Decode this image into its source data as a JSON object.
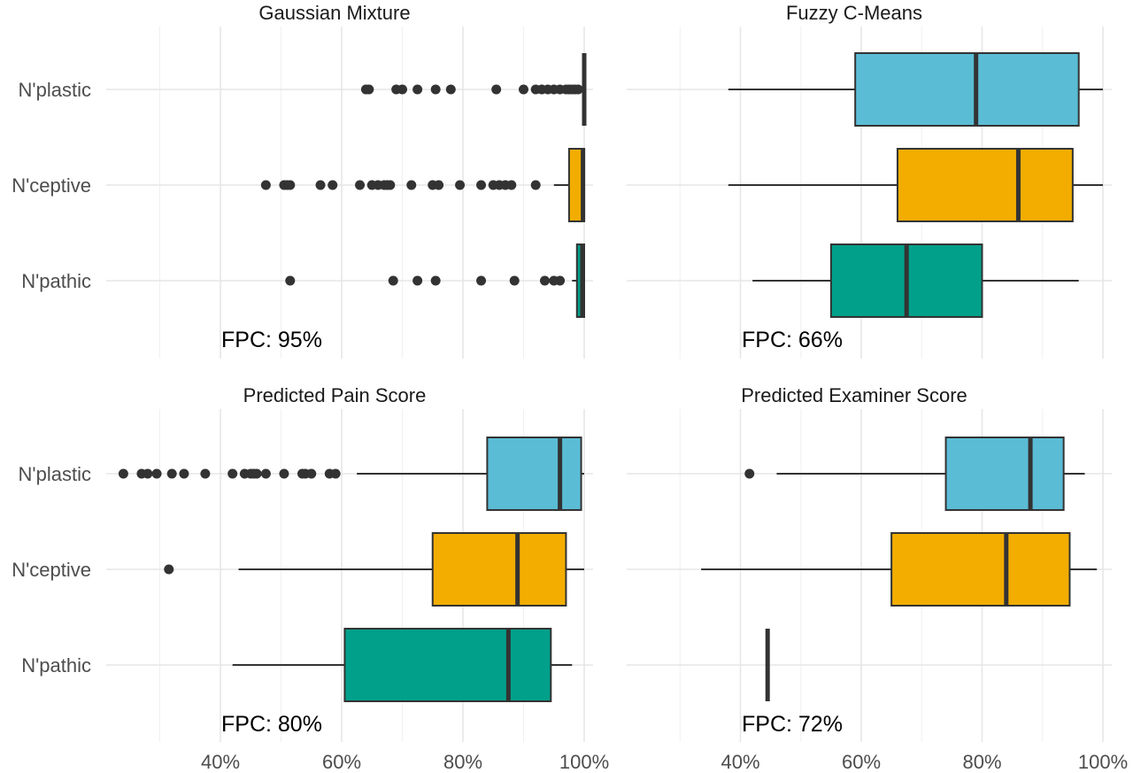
{
  "chart_data": {
    "type": "boxplot",
    "categories": [
      "N'plastic",
      "N'ceptive",
      "N'pathic"
    ],
    "colors": {
      "N'plastic": "#5bbcd6",
      "N'ceptive": "#f2ad00",
      "N'pathic": "#00a08a"
    },
    "x_ticks": [
      "40%",
      "60%",
      "80%",
      "100%"
    ],
    "xlim": [
      20,
      100
    ],
    "panels": [
      {
        "title": "Gaussian Mixture",
        "fpc": "FPC: 95%",
        "boxes": [
          {
            "category": "N'plastic",
            "whisker_low": 100,
            "q1": 100,
            "median": 100,
            "q3": 100,
            "whisker_high": 100,
            "outliers": [
              64,
              64.5,
              69,
              70,
              72.5,
              75.5,
              78,
              85.5,
              90,
              92,
              93,
              94,
              95,
              96,
              97,
              97.5,
              98,
              98.5,
              99
            ]
          },
          {
            "category": "N'ceptive",
            "whisker_low": 95,
            "q1": 97.5,
            "median": 99.8,
            "q3": 100,
            "whisker_high": 100,
            "outliers": [
              47.5,
              50.5,
              51,
              51.5,
              56.5,
              58.5,
              63,
              65,
              66,
              67,
              67.5,
              68,
              71.5,
              75,
              76,
              79.5,
              83,
              85,
              86,
              87,
              88,
              92
            ]
          },
          {
            "category": "N'pathic",
            "whisker_low": 98,
            "q1": 98.8,
            "median": 99.7,
            "q3": 100,
            "whisker_high": 100,
            "outliers": [
              51.5,
              68.5,
              72.5,
              75.5,
              83,
              88.5,
              93.5,
              95,
              96
            ]
          }
        ]
      },
      {
        "title": "Fuzzy C-Means",
        "fpc": "FPC: 66%",
        "boxes": [
          {
            "category": "N'plastic",
            "whisker_low": 38,
            "q1": 59,
            "median": 79,
            "q3": 96,
            "whisker_high": 100,
            "outliers": []
          },
          {
            "category": "N'ceptive",
            "whisker_low": 38,
            "q1": 66,
            "median": 86,
            "q3": 95,
            "whisker_high": 100,
            "outliers": []
          },
          {
            "category": "N'pathic",
            "whisker_low": 42,
            "q1": 55,
            "median": 67.5,
            "q3": 80,
            "whisker_high": 96,
            "outliers": []
          }
        ]
      },
      {
        "title": "Predicted Pain Score",
        "fpc": "FPC: 80%",
        "boxes": [
          {
            "category": "N'plastic",
            "whisker_low": 62.5,
            "q1": 84,
            "median": 96,
            "q3": 99.5,
            "whisker_high": 100,
            "outliers": [
              24,
              27,
              28,
              29.5,
              32,
              34,
              37.5,
              42,
              44,
              45,
              45.5,
              46,
              47.5,
              50.5,
              53.5,
              54,
              55,
              58,
              59
            ]
          },
          {
            "category": "N'ceptive",
            "whisker_low": 43,
            "q1": 75,
            "median": 89,
            "q3": 97,
            "whisker_high": 100,
            "outliers": [
              31.5
            ]
          },
          {
            "category": "N'pathic",
            "whisker_low": 42,
            "q1": 60.5,
            "median": 87.5,
            "q3": 94.5,
            "whisker_high": 98,
            "outliers": []
          }
        ]
      },
      {
        "title": "Predicted Examiner Score",
        "fpc": "FPC: 72%",
        "boxes": [
          {
            "category": "N'plastic",
            "whisker_low": 46,
            "q1": 74,
            "median": 88,
            "q3": 93.5,
            "whisker_high": 97,
            "outliers": [
              41.5
            ]
          },
          {
            "category": "N'ceptive",
            "whisker_low": 33.5,
            "q1": 65,
            "median": 84,
            "q3": 94.5,
            "whisker_high": 99,
            "outliers": []
          },
          {
            "category": "N'pathic",
            "whisker_low": 44.5,
            "q1": 44.5,
            "median": 44.5,
            "q3": 44.5,
            "whisker_high": 44.5,
            "outliers": []
          }
        ]
      }
    ],
    "grid": true
  }
}
